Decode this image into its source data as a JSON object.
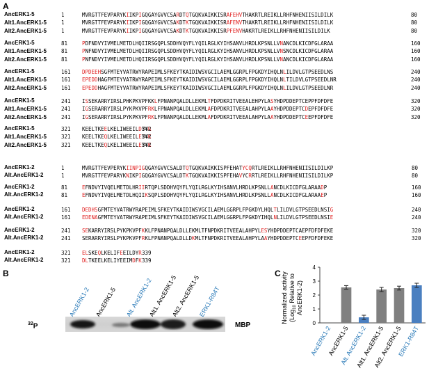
{
  "panels": {
    "a": "A",
    "b": "B",
    "c": "C"
  },
  "alignment_groups": [
    {
      "blocks": [
        {
          "rows": [
            {
              "name": "AncERK1-5",
              "start": "1",
              "seq": "MVRGTTFEVPARYK{I}IKP{I}GQGAYGVVCSA{R}DT{Q}TGQKVAIKKISR{AFEH}{V}THAKRTLREIKLLRHFNHENIISILDILK",
              "end": "80"
            },
            {
              "name": "Alt1.AncERK1-5",
              "start": "1",
              "seq": "MVRGTTFEVPARYK{I}IKP{I}GQGAYGVVCSA{K}DT{K}TGQKVAIKKISR{AFEN}{V}THAKRTLREIKLLRHFNHENIISILDILK",
              "end": "80"
            },
            {
              "name": "Alt2.AncERK1-5",
              "start": "1",
              "seq": "MVRGTTFEVPARYK{I}IKP{I}GQGAYGVVCSA{K}DT{K}TGQKVAIKKISR{PFENV}HAKRTLREIKLLRHFNHENIISILDILK",
              "end": "80"
            }
          ]
        },
        {
          "rows": [
            {
              "name": "AncERK1-5",
              "start": "81",
              "seq": "{P}DFNDVYIVMELMETDLHQIIRSGQPLSDDHVQYFLYQILRGLKYIHSANVLHRDLKPSNLLV{N}ANCDLKICDFGLARAA",
              "end": "160"
            },
            {
              "name": "Alt1.AncERK1-5",
              "start": "81",
              "seq": "{P}NFNDVYIVMELMETDLHQIIRSGQPLSDDHVQYFLYQILRGLKYIHSANVLHRDLKPSNLLV{N}SNCDLKICDFGLARAA",
              "end": "160"
            },
            {
              "name": "Alt2.AncERK1-5",
              "start": "81",
              "seq": "{P}NFNDVYIVMELMETDLHQIIRSGQPLSDDHVQYFLYQILRGLKYIHSANVLHRDLKPSNLLV{N}ANCDLKICDFGLARAA",
              "end": "160"
            }
          ]
        },
        {
          "rows": [
            {
              "name": "AncERK1-5",
              "start": "161",
              "seq": "{DPDEEH}SGFMTEYVATRWYRAPEIMLSFKEYTKAIDIWSVGCILAEMLGGRPLFPGKDYIHQLN{L}ILDVLGTPSEEDLNS",
              "end": "240"
            },
            {
              "name": "Alt1.AncERK1-5",
              "start": "161",
              "seq": "{EPEDD}HAGFMTEYVATRWYRAPEIMLSFKEYTKAIDIWSVGCILAEMLGGRPLFPGKDYIHQLN{L}TILDVLGTPSEEDLNR",
              "end": "240"
            },
            {
              "name": "Alt2.AncERK1-5",
              "start": "161",
              "seq": "{EPEDD}HAGFMTEYVATRWYRAPEIMLSFKEYTKAIDIWSVGCILAEMLGGRPLFPGKDYIHQLN{L}ILDVLGTPSEEDLNR",
              "end": "240"
            }
          ]
        },
        {
          "rows": [
            {
              "name": "AncERK1-5",
              "start": "241",
              "seq": "I{S}SEKARRYIRSLPHKPKVPFKK{L}FPNANPQALDLLEKML{T}FDPDKRITVEEALEHPYLA{S}YHDPDDEPTCEPPFDFDFE",
              "end": "320"
            },
            {
              "name": "Alt1.AncERK1-5",
              "start": "241",
              "seq": "I{G}SERARRYIRSLPYKPKVPF{RK}LFPNANPQALDLLEKML{A}FDPDKRITVEEALAHPYLA{A}YHDPDDEPTC{D}EPFDFDFE",
              "end": "320"
            },
            {
              "name": "Alt2.AncERK1-5",
              "start": "241",
              "seq": "I{G}SERARRYIRSLPYKPKVPF{RK}LFPNANPQALDLLEKML{A}FDPDKRITVEEALAHPYLA{A}YHDPDDEPTC{E}EPFDFDFE",
              "end": "320"
            }
          ]
        },
        {
          "rows": [
            {
              "name": "AncERK1-5",
              "start": "321",
              "seq": "KEELTKE{E}LKELIWEEIL{D}YY{R}",
              "end": "342"
            },
            {
              "name": "Alt1.AncERK1-5",
              "start": "321",
              "seq": "KEELTKE{Q}LKELIWEEIL{E}YY{K}",
              "end": "342"
            },
            {
              "name": "Alt2.AncERK1-5",
              "start": "321",
              "seq": "KEELTKE{Q}LKELIWEEIL{E}YY{K}",
              "end": "342"
            }
          ]
        }
      ]
    },
    {
      "blocks": [
        {
          "rows": [
            {
              "name": "AncERK1-2",
              "start": "1",
              "seq": "MVRGTTFEVPERYK{IINPIG}QGAYGVVCSALDT{Q}TGQKVAIKKISPFEHAT{YCQ}RTLREIKLLRHFNHENIISILDILKP",
              "end": "80"
            },
            {
              "name": "Alt.AncERK1-2",
              "start": "1",
              "seq": "MVRGTTFEVPARYK{N}IKP{I}GQGAYGVVCSALDT{K}TGQKVAIKKISPFEHA{V}YC{R}RTLREIKLLRHFNHENIISILDILKP",
              "end": "80"
            }
          ]
        },
        {
          "rows": [
            {
              "name": "AncERK1-2",
              "start": "81",
              "seq": "{E}FNDVYIVQELMETDLHR{II}RTQPLSDDHVQYFLYQILRGLKYIHSANVLHRDLKPSNLL{A}NCDLKICDFGLARAA{D}P",
              "end": "160"
            },
            {
              "name": "Alt.AncERK1-2",
              "start": "81",
              "seq": "{E}FNDVYIVQELMETDLHQII{K}SQPLSDDHVQYFLYQILRGLKYIHSANVLHRDLKPSNLL{A}NCDLKICDFGLARAA{E}P",
              "end": "160"
            }
          ]
        },
        {
          "rows": [
            {
              "name": "AncERK1-2",
              "start": "161",
              "seq": "{DEDHS}GFMTEYVATRWYRAPEIMLSFKEYTKAIDIWSVGCILAEMLGGRPLFPGKDYLHQL{T}LILDVLGTPSEEDLNSI{G}",
              "end": "240"
            },
            {
              "name": "Alt.AncERK1-2",
              "start": "161",
              "seq": "{EDENA}GFMTEYVATRWYRAPEIMLSFKEYTKAIDIWSVGCILAEMLGGRPLFPGKDYIHQL{N}LILDVLGTPSEEDLNSI{E}",
              "end": "240"
            }
          ]
        },
        {
          "rows": [
            {
              "name": "AncERK1-2",
              "start": "241",
              "seq": "{SE}KARRYIRSLPYKPKVPF{K}KLFPNANPQALDLLEKMLTFNPDKRITVEEALAHPYL{ES}YHDPDDEPTCAEPFDFDFEKE",
              "end": "320"
            },
            {
              "name": "Alt.AncERK1-2",
              "start": "241",
              "seq": "SERARRYIRSLPYKPKVPF{R}KLFPNANPQALDLLD{K}MLTFNPDKRITVEEALAHPYLA{A}YHDPDDEPTC{E}EPFDFDFEKE",
              "end": "320"
            }
          ]
        },
        {
          "rows": [
            {
              "name": "AncERK1-2",
              "start": "321",
              "seq": "{EL}SKE{Q}LKELIF{E}EILDY{R}",
              "end": "339"
            },
            {
              "name": "Alt.AncERK1-2",
              "start": "321",
              "seq": "{DL}TKEELKELIYEEIM{D}F{K}",
              "end": "339"
            }
          ]
        }
      ]
    }
  ],
  "blot": {
    "lanes": [
      {
        "label": "AncERK1-2",
        "color": "#2a7ab8"
      },
      {
        "label": "AncERK1-5",
        "color": "#000000"
      },
      {
        "label": "Alt. AncERK1-2",
        "color": "#2a7ab8"
      },
      {
        "label": "Alt1. AncERK1-5",
        "color": "#000000"
      },
      {
        "label": "Alt2. AncERK1-5",
        "color": "#000000"
      },
      {
        "label": "ERK1-R84T",
        "color": "#2a7ab8"
      }
    ],
    "isotope_sup": "32",
    "isotope": "P",
    "substrate": "MBP"
  },
  "chart_data": {
    "type": "bar",
    "categories": [
      "AncERK1-2",
      "AncERK1-5",
      "Alt. AncERK1-2",
      "Alt1. AncERK1-5",
      "Alt2. AncERK1-5",
      "ERK1-R84T"
    ],
    "values": [
      0,
      2.55,
      0.4,
      2.4,
      2.5,
      2.7
    ],
    "errors": [
      0,
      0.13,
      0.15,
      0.15,
      0.14,
      0.15
    ],
    "bar_colors": [
      "#808080",
      "#808080",
      "#4a7fc0",
      "#808080",
      "#808080",
      "#4a7fc0"
    ],
    "label_colors": [
      "#2a7ab8",
      "#000000",
      "#2a7ab8",
      "#000000",
      "#000000",
      "#2a7ab8"
    ],
    "ylabel_line1": "Normalized activity",
    "ylabel_line2a": "(Log",
    "ylabel_sub": "10",
    "ylabel_line2b": " Relative to",
    "ylabel_line3": "AncERK1-2)",
    "ylim": [
      0,
      4
    ],
    "yticks": [
      "0",
      "1",
      "2",
      "3",
      "4"
    ],
    "grid": false
  }
}
